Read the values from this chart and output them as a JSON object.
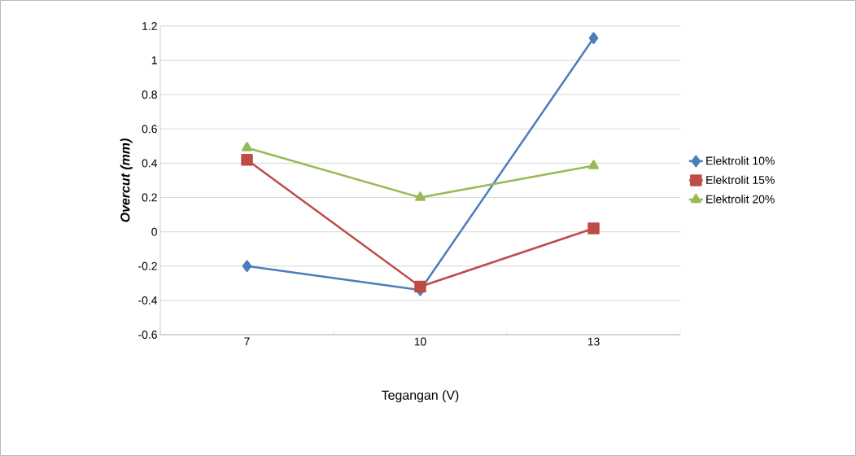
{
  "chart_data": {
    "type": "line",
    "xlabel": "Tegangan (V)",
    "ylabel": "Overcut (mm)",
    "categories": [
      "7",
      "10",
      "13"
    ],
    "series": [
      {
        "name": "Elektrolit 10%",
        "color": "#4a7ebb",
        "marker": "diamond",
        "values": [
          -0.2,
          -0.34,
          1.13
        ]
      },
      {
        "name": "Elektrolit 15%",
        "color": "#be4b48",
        "marker": "square",
        "values": [
          0.42,
          -0.32,
          0.02
        ]
      },
      {
        "name": "Elektrolit 20%",
        "color": "#98b954",
        "marker": "triangle",
        "values": [
          0.49,
          0.2,
          0.385
        ]
      }
    ],
    "ylim": [
      -0.6,
      1.2
    ],
    "yticks": [
      -0.6,
      -0.4,
      -0.2,
      0,
      0.2,
      0.4,
      0.6,
      0.8,
      1,
      1.2
    ],
    "grid": "y",
    "legend": "right",
    "line_style": "solid"
  }
}
